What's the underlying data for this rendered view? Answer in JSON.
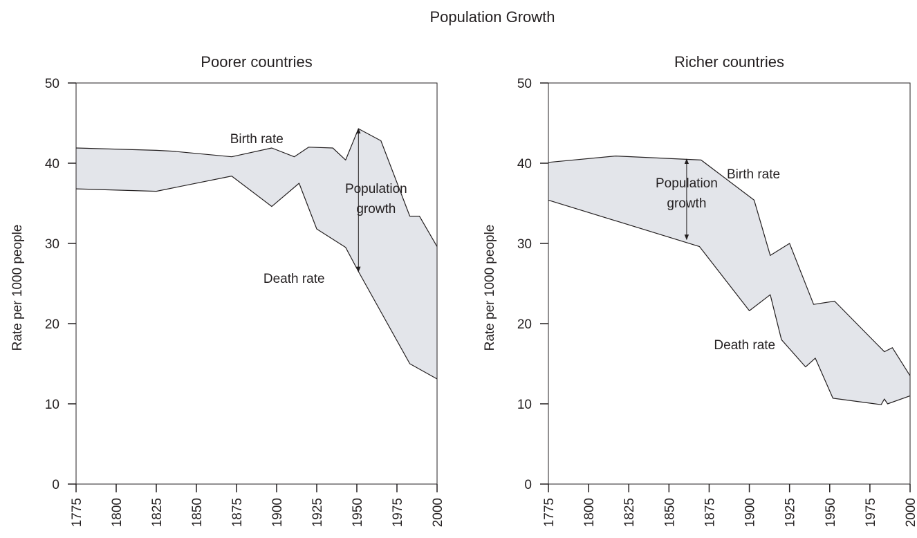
{
  "figure_title": "Population Growth",
  "colors": {
    "band": "#e3e5ea",
    "line": "#231f20"
  },
  "chart_data": [
    {
      "type": "area",
      "title": "Poorer countries",
      "xlabel": "",
      "ylabel": "Rate per 1000 people",
      "xlim": [
        1775,
        2000
      ],
      "ylim": [
        0,
        50
      ],
      "xticks": [
        "1775",
        "1800",
        "1825",
        "1850",
        "1875",
        "1900",
        "1925",
        "1950",
        "1975",
        "2000"
      ],
      "yticks": [
        "0",
        "10",
        "20",
        "30",
        "40",
        "50"
      ],
      "grid": false,
      "series": [
        {
          "name": "Birth rate",
          "x": [
            1775,
            1825,
            1835,
            1872,
            1897,
            1911,
            1920,
            1935,
            1943,
            1951,
            1965,
            1983,
            1989,
            2000
          ],
          "y": [
            41.9,
            41.6,
            41.5,
            40.8,
            41.9,
            40.8,
            42.0,
            41.9,
            40.4,
            44.3,
            42.8,
            33.4,
            33.4,
            29.6
          ]
        },
        {
          "name": "Death rate",
          "x": [
            1775,
            1825,
            1872,
            1897,
            1914,
            1925,
            1943,
            1951,
            1983,
            2000
          ],
          "y": [
            36.8,
            36.5,
            38.4,
            34.6,
            37.5,
            31.8,
            29.5,
            26.5,
            15.0,
            13.1
          ]
        }
      ],
      "annotations": [
        {
          "text": "Birth rate",
          "x": 1871,
          "y": 43.1,
          "anchor": "start"
        },
        {
          "text": "Population",
          "x": 1962,
          "y": 36.9,
          "anchor": "middle"
        },
        {
          "text": "growth",
          "x": 1962,
          "y": 34.4,
          "anchor": "middle"
        },
        {
          "text": "Death rate",
          "x": 1930,
          "y": 25.7,
          "anchor": "end"
        }
      ],
      "arrow": {
        "x": 1951,
        "y_from": 44.3,
        "y_to": 26.5
      }
    },
    {
      "type": "area",
      "title": "Richer countries",
      "xlabel": "",
      "ylabel": "Rate per 1000 people",
      "xlim": [
        1775,
        2000
      ],
      "ylim": [
        0,
        50
      ],
      "xticks": [
        "1775",
        "1800",
        "1825",
        "1850",
        "1875",
        "1900",
        "1925",
        "1950",
        "1975",
        "2000"
      ],
      "yticks": [
        "0",
        "10",
        "20",
        "30",
        "40",
        "50"
      ],
      "grid": false,
      "series": [
        {
          "name": "Birth rate",
          "x": [
            1775,
            1817,
            1870,
            1903,
            1913,
            1925,
            1940,
            1953,
            1984,
            1989,
            2000
          ],
          "y": [
            40.1,
            40.9,
            40.4,
            35.4,
            28.5,
            30.0,
            22.4,
            22.8,
            16.5,
            17.0,
            13.5
          ]
        },
        {
          "name": "Death rate",
          "x": [
            1775,
            1869,
            1900,
            1913,
            1920,
            1935,
            1941,
            1952,
            1982,
            1984,
            1986,
            2000
          ],
          "y": [
            35.4,
            29.6,
            21.6,
            23.6,
            18.0,
            14.6,
            15.7,
            10.7,
            9.9,
            10.6,
            10.0,
            11.0
          ]
        }
      ],
      "annotations": [
        {
          "text": "Birth rate",
          "x": 1886,
          "y": 38.7,
          "anchor": "start"
        },
        {
          "text": "Population",
          "x": 1861,
          "y": 37.6,
          "anchor": "middle"
        },
        {
          "text": "growth",
          "x": 1861,
          "y": 35.1,
          "anchor": "middle"
        },
        {
          "text": "Death rate",
          "x": 1878,
          "y": 17.4,
          "anchor": "start"
        }
      ],
      "arrow": {
        "x": 1861,
        "y_from": 40.5,
        "y_to": 30.5
      }
    }
  ]
}
